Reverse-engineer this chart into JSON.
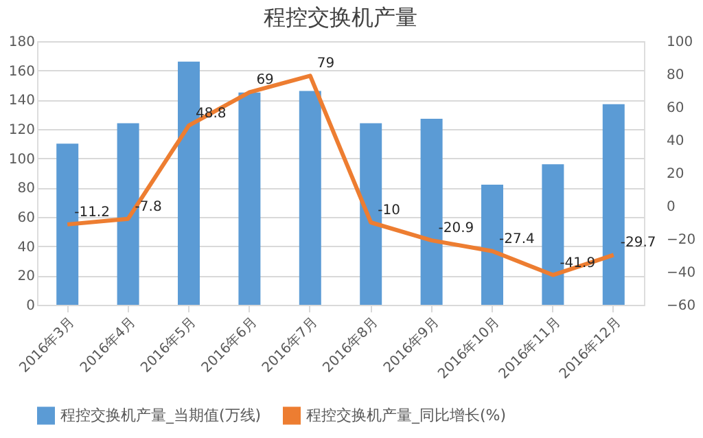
{
  "chart_data": {
    "type": "bar",
    "title": "程控交换机产量",
    "categories": [
      "2016年3月",
      "2016年4月",
      "2016年5月",
      "2016年6月",
      "2016年7月",
      "2016年8月",
      "2016年9月",
      "2016年10月",
      "2016年11月",
      "2016年12月"
    ],
    "series": [
      {
        "name": "程控交换机产量_当期值(万线)",
        "color": "#5b9bd5",
        "values": [
          110,
          124,
          166,
          145,
          146,
          124,
          127,
          82,
          96,
          137
        ]
      },
      {
        "name": "程控交换机产量_同比增长(%)",
        "color": "#ed7d31",
        "type": "line",
        "axis": "y2",
        "values": [
          -11.2,
          -7.8,
          48.8,
          69,
          79,
          -10,
          -20.9,
          -27.4,
          -41.9,
          -29.7
        ],
        "value_labels": [
          "-11.2",
          "-7.8",
          "48.8",
          "69",
          "79",
          "-10",
          "-20.9",
          "-27.4",
          "-41.9",
          "-29.7"
        ]
      }
    ],
    "ylim": [
      0,
      180
    ],
    "yticks": [
      0,
      20,
      40,
      60,
      80,
      100,
      120,
      140,
      160,
      180
    ],
    "y2lim": [
      -60,
      100
    ],
    "y2ticks": [
      -60,
      -40,
      -20,
      0,
      20,
      40,
      60,
      80,
      100
    ],
    "grid": "y",
    "legend": "bottom"
  }
}
